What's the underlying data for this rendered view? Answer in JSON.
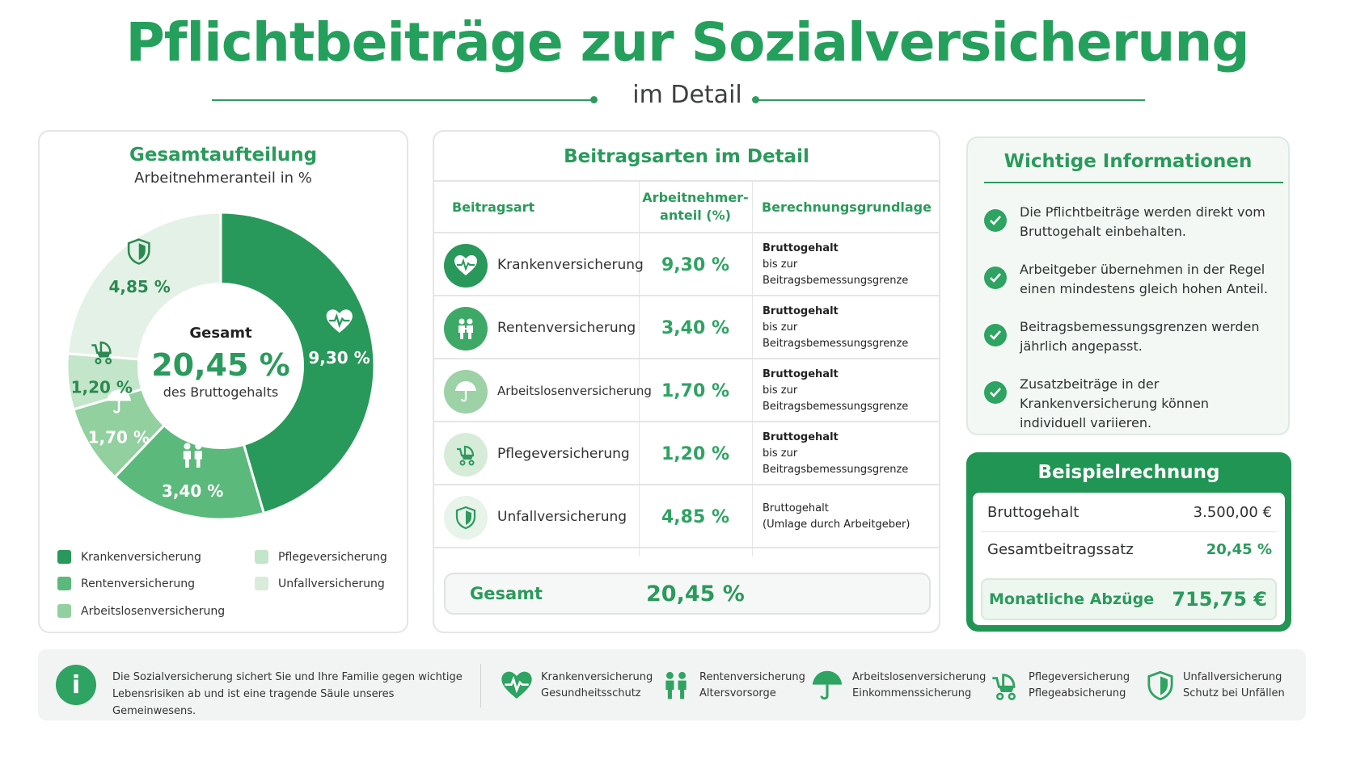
{
  "header": {
    "title": "Pflichtbeiträge zur Sozialversicherung",
    "subtitle": "im Detail"
  },
  "colors": {
    "accent": "#2fa362",
    "dark_green": "#219553",
    "kranken": "#28995a",
    "renten": "#5bb97b",
    "arbeitslosen": "#92d09f",
    "pflege": "#c3e5c9",
    "unfall": "#e4f1e6"
  },
  "left_card": {
    "title": "Gesamtaufteilung",
    "subtitle": "Arbeitnehmeranteil in %",
    "center_label": "Gesamt",
    "center_value": "20,45 %",
    "center_sub": "des Bruttogehalts",
    "legend": [
      "Krankenversicherung",
      "Rentenversicherung",
      "Arbeitslosenversicherung",
      "Pflegeversicherung",
      "Unfallversicherung"
    ]
  },
  "chart_data": {
    "type": "pie",
    "title": "Gesamtaufteilung",
    "subtitle": "Arbeitnehmeranteil in %",
    "categories": [
      "Krankenversicherung",
      "Rentenversicherung",
      "Arbeitslosenversicherung",
      "Pflegeversicherung",
      "Unfallversicherung"
    ],
    "values": [
      9.3,
      3.4,
      1.7,
      1.2,
      4.85
    ],
    "labels": [
      "9,30 %",
      "3,40 %",
      "1,70 %",
      "1,20 %",
      "4,85 %"
    ],
    "icons": [
      "heart-pulse-icon",
      "people-icon",
      "umbrella-icon",
      "stroller-icon",
      "shield-icon"
    ],
    "colors": [
      "#28995a",
      "#5bb97b",
      "#92d09f",
      "#c3e5c9",
      "#e4f1e6"
    ],
    "label_colors": [
      "#ffffff",
      "#ffffff",
      "#ffffff",
      "#2b8a52",
      "#2b8a52"
    ],
    "total": "20,45 %",
    "legend_position": "bottom"
  },
  "table": {
    "title": "Beitragsarten im Detail",
    "headers": [
      "Beitragsart",
      "Arbeitnehmer-\nanteil (%)",
      "Berechnungsgrundlage"
    ],
    "rows": [
      {
        "name": "Krankenversicherung",
        "pct": "9,30 %",
        "basis1": "Bruttogehalt",
        "basis2": "bis zur Beitragsbemessungsgrenze"
      },
      {
        "name": "Rentenversicherung",
        "pct": "3,40 %",
        "basis1": "Bruttogehalt",
        "basis2": "bis zur Beitragsbemessungsgrenze"
      },
      {
        "name": "Arbeitslosenversicherung",
        "pct": "1,70 %",
        "basis1": "Bruttogehalt",
        "basis2": "bis zur Beitragsbemessungsgrenze"
      },
      {
        "name": "Pflegeversicherung",
        "pct": "1,20 %",
        "basis1": "Bruttogehalt",
        "basis2": "bis zur Beitragsbemessungsgrenze"
      },
      {
        "name": "Unfallversicherung",
        "pct": "4,85 %",
        "basis1": "Bruttogehalt",
        "basis2": "(Umlage durch Arbeitgeber)"
      }
    ],
    "total_label": "Gesamt",
    "total_value": "20,45 %"
  },
  "info": {
    "title": "Wichtige Informationen",
    "items": [
      "Die Pflichtbeiträge werden direkt vom Bruttogehalt einbehalten.",
      "Arbeitgeber übernehmen in der Regel einen mindestens gleich hohen Anteil.",
      "Beitragsbemessungsgrenzen werden jährlich angepasst.",
      "Zusatzbeiträge in der Krankenversicherung können individuell variieren."
    ]
  },
  "example": {
    "title": "Beispielrechnung",
    "gross_label": "Bruttogehalt",
    "gross_value": "3.500,00 €",
    "rate_label": "Gesamtbeitragssatz",
    "rate_value": "20,45 %",
    "deduct_label": "Monatliche Abzüge",
    "deduct_value": "715,75 €"
  },
  "footer": {
    "text": "Die Sozialversicherung sichert Sie und Ihre Familie gegen wichtige Lebensrisiken ab und ist eine tragende Säule unseres Gemeinwesens.",
    "items": [
      {
        "title": "Krankenversicherung",
        "desc": "Gesundheitsschutz"
      },
      {
        "title": "Rentenversicherung",
        "desc": "Altersvorsorge"
      },
      {
        "title": "Arbeitslosenversicherung",
        "desc": "Einkommenssicherung"
      },
      {
        "title": "Pflegeversicherung",
        "desc": "Pflegeabsicherung"
      },
      {
        "title": "Unfallversicherung",
        "desc": "Schutz bei Unfällen"
      }
    ]
  }
}
